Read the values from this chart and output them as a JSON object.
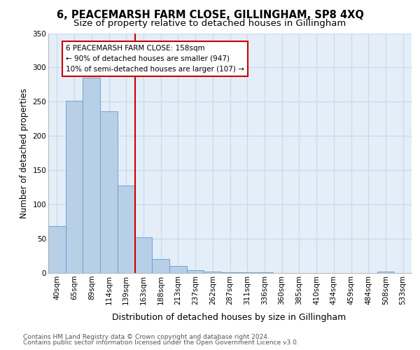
{
  "title": "6, PEACEMARSH FARM CLOSE, GILLINGHAM, SP8 4XQ",
  "subtitle": "Size of property relative to detached houses in Gillingham",
  "xlabel": "Distribution of detached houses by size in Gillingham",
  "ylabel": "Number of detached properties",
  "bins": [
    "40sqm",
    "65sqm",
    "89sqm",
    "114sqm",
    "139sqm",
    "163sqm",
    "188sqm",
    "213sqm",
    "237sqm",
    "262sqm",
    "287sqm",
    "311sqm",
    "336sqm",
    "360sqm",
    "385sqm",
    "410sqm",
    "434sqm",
    "459sqm",
    "484sqm",
    "508sqm",
    "533sqm"
  ],
  "values": [
    68,
    251,
    285,
    236,
    128,
    52,
    20,
    10,
    4,
    2,
    1,
    1,
    1,
    0,
    0,
    0,
    0,
    0,
    0,
    2,
    0
  ],
  "bar_color": "#b8cfe8",
  "bar_edge_color": "#6699cc",
  "vline_color": "#cc0000",
  "annotation_text": "6 PEACEMARSH FARM CLOSE: 158sqm\n← 90% of detached houses are smaller (947)\n10% of semi-detached houses are larger (107) →",
  "annotation_box_color": "#ffffff",
  "annotation_box_edge": "#cc0000",
  "ylim": [
    0,
    350
  ],
  "yticks": [
    0,
    50,
    100,
    150,
    200,
    250,
    300,
    350
  ],
  "grid_color": "#c8d8ea",
  "background_color": "#e4eef8",
  "footer_line1": "Contains HM Land Registry data © Crown copyright and database right 2024.",
  "footer_line2": "Contains public sector information licensed under the Open Government Licence v3.0.",
  "title_fontsize": 10.5,
  "subtitle_fontsize": 9.5,
  "ylabel_fontsize": 8.5,
  "xlabel_fontsize": 9,
  "tick_fontsize": 7.5,
  "annotation_fontsize": 7.5,
  "footer_fontsize": 6.5
}
